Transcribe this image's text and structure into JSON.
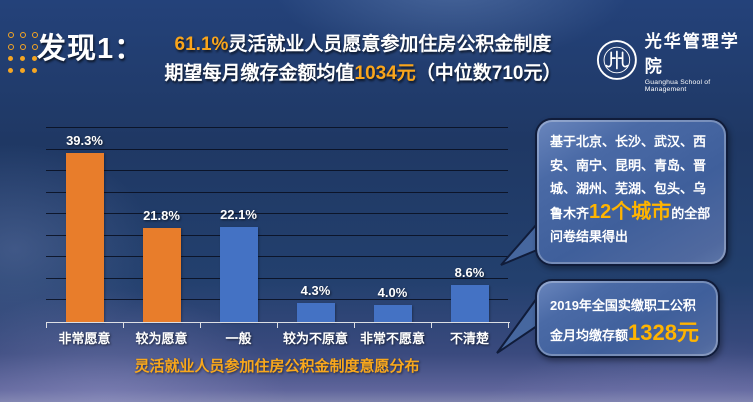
{
  "header": {
    "finding": "发现1：",
    "line1": {
      "highlight": "61.1%",
      "text": "灵活就业人员愿意参加住房公积金制度"
    },
    "line2": {
      "prefix": "期望每月缴存金额均值",
      "highlight": "1034元",
      "suffix": "（中位数710元）"
    }
  },
  "logo": {
    "name_cn": "光华管理学院",
    "name_en": "Guanghua School of Management",
    "seal_icon": "peking-university-seal-icon"
  },
  "chart_data": {
    "type": "bar",
    "title": "灵活就业人员参加住房公积金制度意愿分布",
    "categories": [
      "非常愿意",
      "较为愿意",
      "一般",
      "较为不原意",
      "非常不愿意",
      "不清楚"
    ],
    "values": [
      39.3,
      21.8,
      22.1,
      4.3,
      4.0,
      8.6
    ],
    "labels": [
      "39.3%",
      "21.8%",
      "22.1%",
      "4.3%",
      "4.0%",
      "8.6%"
    ],
    "bar_colors": [
      "#E87D2B",
      "#E87D2B",
      "#4472C4",
      "#4472C4",
      "#4472C4",
      "#4472C4"
    ],
    "xlabel": "",
    "ylabel": "",
    "ylim": [
      0,
      45
    ],
    "gridline_step": 5,
    "grid": true,
    "legend": "none"
  },
  "callouts": [
    {
      "pre": "基于北京、长沙、武汉、西安、南宁、昆明、青岛、晋城、湖州、芜湖、包头、乌鲁木齐",
      "highlight": "12个城市",
      "post": "的全部问卷结果得出"
    },
    {
      "pre": "2019年全国实缴职工公积金月均缴存额",
      "highlight": "1328元",
      "post": ""
    }
  ],
  "colors": {
    "background": "#1F3864",
    "accent_orange": "#F9A51B",
    "bar_orange": "#E87D2B",
    "bar_blue": "#4472C4",
    "callout_fill": "#46679F",
    "callout_border": "#101C3A",
    "gridline": "#0A0F1E",
    "text": "#FFFFFF"
  },
  "icons": {
    "dots_grid": "dots-grid-icon",
    "seal": "peking-university-seal-icon"
  }
}
